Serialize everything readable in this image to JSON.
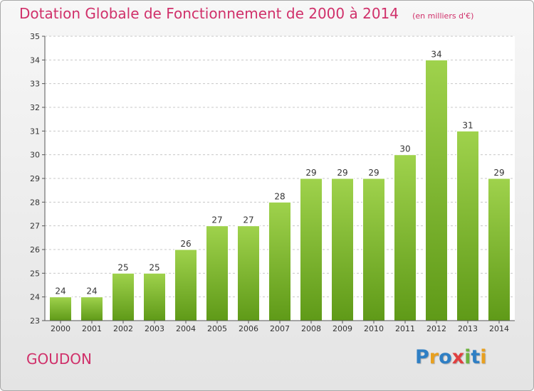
{
  "chart_data": {
    "type": "bar",
    "title": "Dotation Globale de Fonctionnement de 2000 à 2014",
    "subtitle": "(en milliers d'€)",
    "categories": [
      "2000",
      "2001",
      "2002",
      "2003",
      "2004",
      "2005",
      "2006",
      "2007",
      "2008",
      "2009",
      "2010",
      "2011",
      "2012",
      "2013",
      "2014"
    ],
    "values": [
      24,
      24,
      25,
      25,
      26,
      27,
      27,
      28,
      29,
      29,
      29,
      30,
      34,
      31,
      29
    ],
    "ylim": [
      23,
      35
    ],
    "yticks": [
      23,
      24,
      25,
      26,
      27,
      28,
      29,
      30,
      31,
      32,
      33,
      34,
      35
    ],
    "grid": true,
    "bar_color": "#7fbf2a",
    "xlabel": "",
    "ylabel": ""
  },
  "commune": "GOUDON",
  "logo": {
    "letters": [
      "P",
      "r",
      "o",
      "x",
      "i",
      "t",
      "i"
    ],
    "colors": [
      "#2f7fc4",
      "#e8a020",
      "#2f7fc4",
      "#e04040",
      "#6db33f",
      "#2f7fc4",
      "#e8a020"
    ]
  },
  "colors": {
    "title": "#d0306a",
    "grid": "#c8c8c8",
    "axis": "#555555"
  }
}
